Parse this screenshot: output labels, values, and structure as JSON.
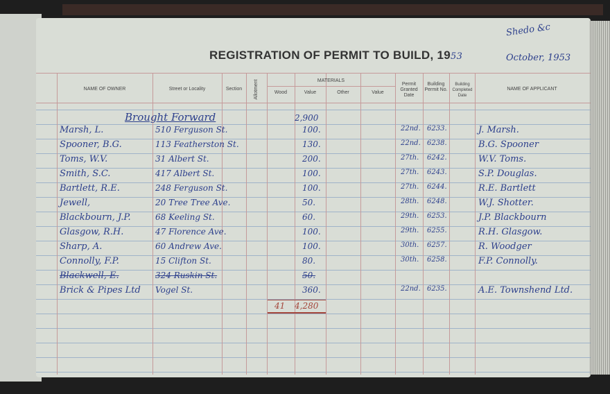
{
  "header": {
    "title": "REGISTRATION OF PERMIT TO BUILD, 19",
    "year_suffix": "53",
    "month": "October, 1953",
    "corner_note": "Shedo &c"
  },
  "columns": {
    "owner": "NAME OF OWNER",
    "street": "Street or Locality",
    "section": "Section",
    "allotment": "Allotment",
    "materials": "MATERIALS",
    "wood": "Wood",
    "value1": "Value",
    "other": "Other",
    "value2": "Value",
    "granted": "Permit Granted Date",
    "permit_no": "Building Permit No.",
    "completed": "Building Completed Date",
    "applicant": "NAME OF APPLICANT"
  },
  "brought_forward": {
    "label": "Brought Forward",
    "value": "2,900"
  },
  "rows": [
    {
      "owner": "Marsh, L.",
      "street": "510 Ferguson St.",
      "value": "100.",
      "date": "22nd.",
      "permit": "6233.",
      "applicant": "J. Marsh."
    },
    {
      "owner": "Spooner, B.G.",
      "street": "113 Featherston St.",
      "value": "130.",
      "date": "22nd.",
      "permit": "6238.",
      "applicant": "B.G. Spooner"
    },
    {
      "owner": "Toms, W.V.",
      "street": "31 Albert St.",
      "value": "200.",
      "date": "27th.",
      "permit": "6242.",
      "applicant": "W.V. Toms."
    },
    {
      "owner": "Smith, S.C.",
      "street": "417 Albert St.",
      "value": "100.",
      "date": "27th.",
      "permit": "6243.",
      "applicant": "S.P. Douglas."
    },
    {
      "owner": "Bartlett, R.E.",
      "street": "248 Ferguson St.",
      "value": "100.",
      "date": "27th.",
      "permit": "6244.",
      "applicant": "R.E. Bartlett"
    },
    {
      "owner": "Jewell,",
      "street": "20 Tree Tree Ave.",
      "value": "50.",
      "date": "28th.",
      "permit": "6248.",
      "applicant": "W.J. Shotter."
    },
    {
      "owner": "Blackbourn, J.P.",
      "street": "68 Keeling St.",
      "value": "60.",
      "date": "29th.",
      "permit": "6253.",
      "applicant": "J.P. Blackbourn"
    },
    {
      "owner": "Glasgow, R.H.",
      "street": "47 Florence Ave.",
      "value": "100.",
      "date": "29th.",
      "permit": "6255.",
      "applicant": "R.H. Glasgow."
    },
    {
      "owner": "Sharp, A.",
      "street": "60 Andrew Ave.",
      "value": "100.",
      "date": "30th.",
      "permit": "6257.",
      "applicant": "R. Woodger"
    },
    {
      "owner": "Connolly, F.P.",
      "street": "15 Clifton St.",
      "value": "80.",
      "date": "30th.",
      "permit": "6258.",
      "applicant": "F.P. Connolly."
    },
    {
      "owner": "Blackwell, E.",
      "street": "324 Ruskin St.",
      "value": "50.",
      "date": "",
      "permit": "",
      "applicant": "",
      "struck": true
    },
    {
      "owner": "Brick & Pipes Ltd",
      "street": "Vogel St.",
      "value": "360.",
      "date": "22nd.",
      "permit": "6235.",
      "applicant": "A.E. Townshend Ltd."
    }
  ],
  "total": {
    "count": "41",
    "value": "4,280"
  },
  "colors": {
    "ink": "#2c3f8c",
    "red_ink": "#a4453a",
    "rule_blue": "#9fb3c9",
    "rule_red": "#c59a9a",
    "paper": "#d9ddd6"
  }
}
